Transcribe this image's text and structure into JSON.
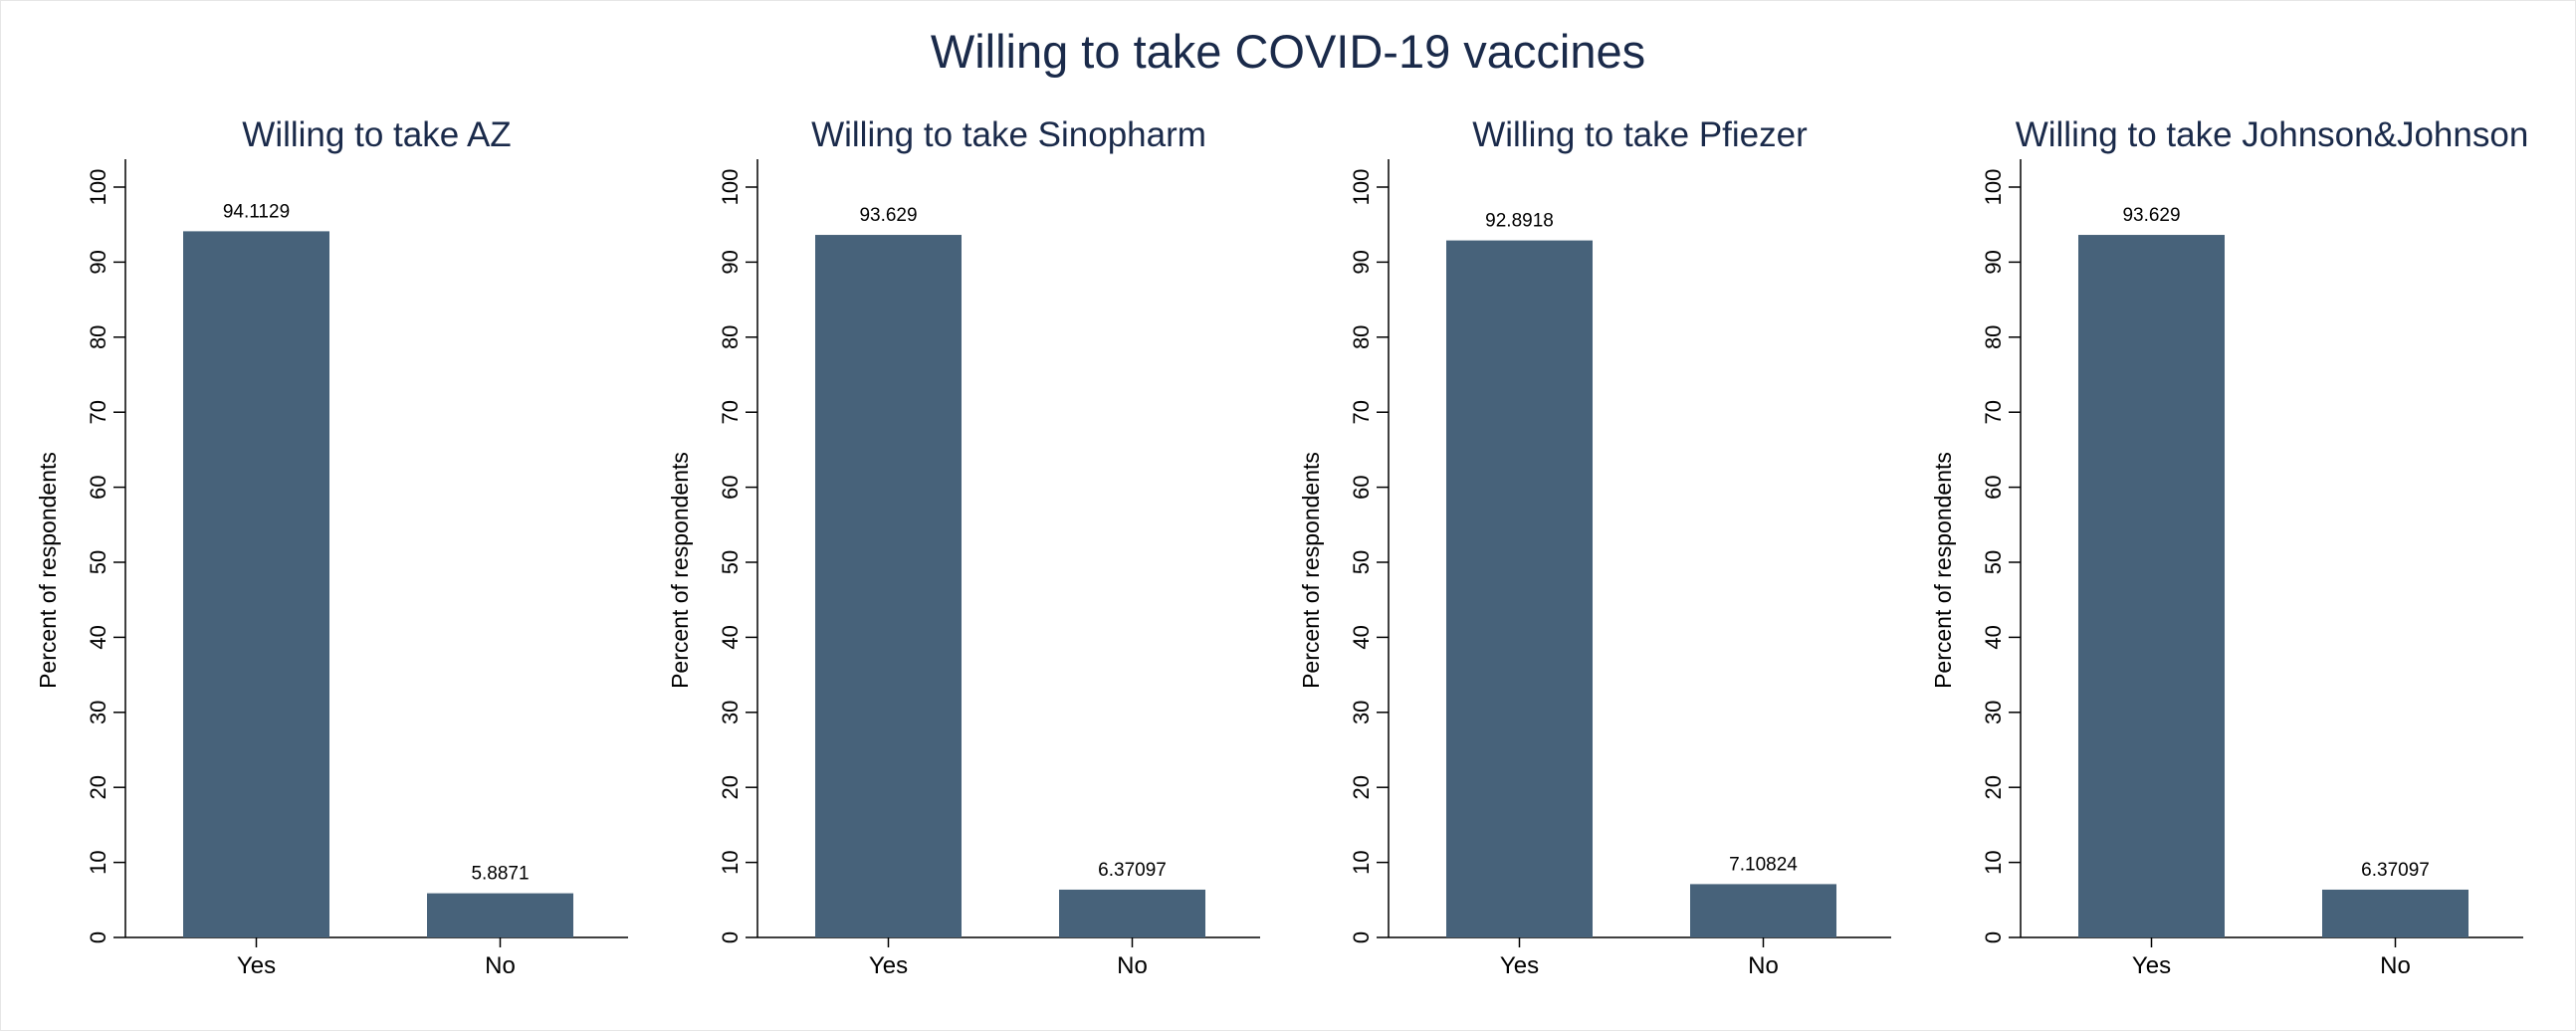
{
  "title": "Willing to take COVID-19 vaccines",
  "colors": {
    "bar": "#47627a",
    "title": "#1a2a4a",
    "axis": "#000000"
  },
  "chart_data": [
    {
      "type": "bar",
      "title": "Willing to take AZ",
      "ylabel": "Percent of respondents",
      "xlabel": "",
      "categories": [
        "Yes",
        "No"
      ],
      "values": [
        94.1129,
        5.8871
      ],
      "value_labels": [
        "94.1129",
        "5.8871"
      ],
      "ylim": [
        0,
        100
      ],
      "yticks": [
        0,
        10,
        20,
        30,
        40,
        50,
        60,
        70,
        80,
        90,
        100
      ],
      "grid": false
    },
    {
      "type": "bar",
      "title": "Willing to take Sinopharm",
      "ylabel": "Percent of respondents",
      "xlabel": "",
      "categories": [
        "Yes",
        "No"
      ],
      "values": [
        93.629,
        6.37097
      ],
      "value_labels": [
        "93.629",
        "6.37097"
      ],
      "ylim": [
        0,
        100
      ],
      "yticks": [
        0,
        10,
        20,
        30,
        40,
        50,
        60,
        70,
        80,
        90,
        100
      ],
      "grid": false
    },
    {
      "type": "bar",
      "title": "Willing to take Pfiezer",
      "ylabel": "Percent of respondents",
      "xlabel": "",
      "categories": [
        "Yes",
        "No"
      ],
      "values": [
        92.8918,
        7.10824
      ],
      "value_labels": [
        "92.8918",
        "7.10824"
      ],
      "ylim": [
        0,
        100
      ],
      "yticks": [
        0,
        10,
        20,
        30,
        40,
        50,
        60,
        70,
        80,
        90,
        100
      ],
      "grid": false
    },
    {
      "type": "bar",
      "title": "Willing to take Johnson&Johnson",
      "ylabel": "Percent of respondents",
      "xlabel": "",
      "categories": [
        "Yes",
        "No"
      ],
      "values": [
        93.629,
        6.37097
      ],
      "value_labels": [
        "93.629",
        "6.37097"
      ],
      "ylim": [
        0,
        100
      ],
      "yticks": [
        0,
        10,
        20,
        30,
        40,
        50,
        60,
        70,
        80,
        90,
        100
      ],
      "grid": false
    }
  ]
}
